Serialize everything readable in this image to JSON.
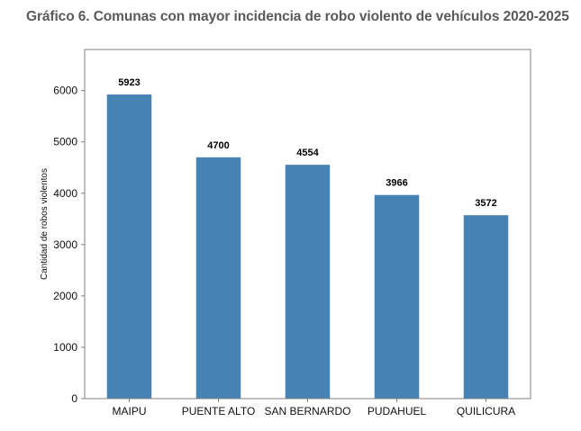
{
  "chart_data": {
    "type": "bar",
    "title": "Gráfico 6. Comunas con mayor incidencia de robo violento de vehículos 2020-2025",
    "xlabel": "",
    "ylabel": "Cantidad de robos violentos",
    "categories": [
      "MAIPU",
      "PUENTE ALTO",
      "SAN BERNARDO",
      "PUDAHUEL",
      "QUILICURA"
    ],
    "values": [
      5923,
      4700,
      4554,
      3966,
      3572
    ],
    "value_labels": [
      "5923",
      "4700",
      "4554",
      "3966",
      "3572"
    ],
    "yticks": [
      0,
      1000,
      2000,
      3000,
      4000,
      5000,
      6000
    ],
    "ylim": [
      0,
      6800
    ],
    "grid": false,
    "bar_color": "#4682b4"
  }
}
